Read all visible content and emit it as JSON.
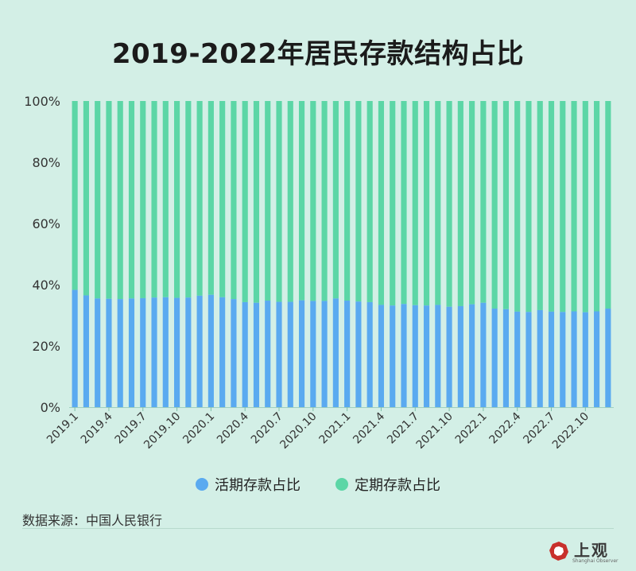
{
  "title": "2019-2022年居民存款结构占比",
  "legend": {
    "demand_label": "活期存款占比",
    "time_label": "定期存款占比"
  },
  "source": "数据来源：中国人民银行",
  "logo": {
    "text": "上观",
    "subtext": "Shanghai Observer"
  },
  "colors": {
    "demand": "#5aaaf0",
    "time": "#5cd6a6",
    "background": "#d3efe6"
  },
  "chart_data": {
    "type": "bar",
    "stacked": true,
    "ylim": [
      0,
      100
    ],
    "yticks": [
      "0%",
      "20%",
      "40%",
      "60%",
      "80%",
      "100%"
    ],
    "xtick_labels": [
      "2019.1",
      "2019.4",
      "2019.7",
      "2019.10",
      "2020.1",
      "2020.4",
      "2020.7",
      "2020.10",
      "2021.1",
      "2021.4",
      "2021.7",
      "2021.10",
      "2022.1",
      "2022.4",
      "2022.7",
      "2022.10"
    ],
    "categories": [
      "2019.1",
      "2019.2",
      "2019.3",
      "2019.4",
      "2019.5",
      "2019.6",
      "2019.7",
      "2019.8",
      "2019.9",
      "2019.10",
      "2019.11",
      "2019.12",
      "2020.1",
      "2020.2",
      "2020.3",
      "2020.4",
      "2020.5",
      "2020.6",
      "2020.7",
      "2020.8",
      "2020.9",
      "2020.10",
      "2020.11",
      "2020.12",
      "2021.1",
      "2021.2",
      "2021.3",
      "2021.4",
      "2021.5",
      "2021.6",
      "2021.7",
      "2021.8",
      "2021.9",
      "2021.10",
      "2021.11",
      "2021.12",
      "2022.1",
      "2022.2",
      "2022.3",
      "2022.4",
      "2022.5",
      "2022.6",
      "2022.7",
      "2022.8",
      "2022.9",
      "2022.10",
      "2022.11",
      "2022.12"
    ],
    "series": [
      {
        "name": "活期存款占比",
        "values": [
          38.3,
          36.5,
          35.5,
          35.4,
          35.3,
          35.5,
          35.6,
          35.8,
          35.9,
          35.7,
          35.8,
          36.4,
          36.7,
          35.9,
          35.3,
          34.3,
          34.1,
          34.8,
          34.4,
          34.4,
          34.9,
          34.7,
          34.7,
          35.5,
          34.8,
          34.5,
          34.3,
          33.4,
          33.2,
          33.7,
          33.3,
          33.2,
          33.4,
          32.8,
          33.0,
          33.6,
          34.1,
          32.2,
          32.0,
          31.2,
          31.1,
          31.7,
          31.2,
          31.1,
          31.3,
          31.0,
          31.3,
          32.2
        ]
      },
      {
        "name": "定期存款占比",
        "values": [
          61.7,
          63.5,
          64.5,
          64.6,
          64.7,
          64.5,
          64.4,
          64.2,
          64.1,
          64.3,
          64.2,
          63.6,
          63.3,
          64.1,
          64.7,
          65.7,
          65.9,
          65.2,
          65.6,
          65.6,
          65.1,
          65.3,
          65.3,
          64.5,
          65.2,
          65.5,
          65.7,
          66.6,
          66.8,
          66.3,
          66.7,
          66.8,
          66.6,
          67.2,
          67.0,
          66.4,
          65.9,
          67.8,
          68.0,
          68.8,
          68.9,
          68.3,
          68.8,
          68.9,
          68.7,
          69.0,
          68.7,
          67.8
        ]
      }
    ]
  }
}
